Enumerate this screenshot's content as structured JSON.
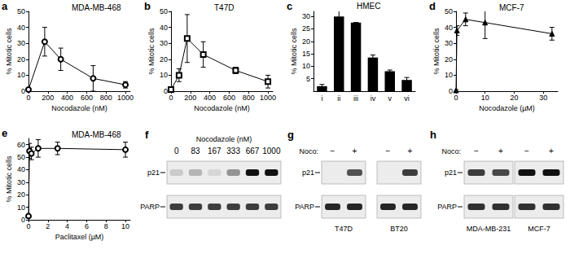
{
  "chart_data": [
    {
      "panel": "a",
      "type": "line",
      "title": "MDA-MB-468",
      "x_label": "Nocodazole (nM)",
      "y_label": "% Mitotic cells",
      "marker": "open_circle",
      "color": "#000000",
      "x": [
        0,
        167,
        333,
        667,
        1000
      ],
      "values": [
        1,
        31,
        20,
        8,
        4
      ],
      "errors": [
        0.5,
        9,
        7,
        8,
        2
      ],
      "xlim": [
        0,
        1050
      ],
      "xticks": [
        0,
        200,
        400,
        600,
        800,
        1000
      ],
      "ylim": [
        0,
        50
      ],
      "yticks": [
        0,
        10,
        20,
        30,
        40,
        50
      ],
      "grid": false
    },
    {
      "panel": "b",
      "type": "line",
      "title": "T47D",
      "x_label": "Nocodazole (nM)",
      "y_label": "% Mitotic cells",
      "marker": "open_square",
      "color": "#000000",
      "x": [
        0,
        83,
        167,
        333,
        667,
        1000
      ],
      "values": [
        1,
        10,
        33,
        23,
        13,
        6
      ],
      "errors": [
        1,
        4,
        15,
        8,
        2,
        4
      ],
      "xlim": [
        0,
        1050
      ],
      "xticks": [
        0,
        200,
        400,
        600,
        800,
        1000
      ],
      "ylim": [
        0,
        50
      ],
      "yticks": [
        0,
        10,
        20,
        30,
        40,
        50
      ],
      "grid": false
    },
    {
      "panel": "c",
      "type": "bar",
      "title": "HMEC",
      "y_label": "% Mitotic cells",
      "color": "#000000",
      "categories": [
        "i",
        "ii",
        "iii",
        "iv",
        "v",
        "vi"
      ],
      "values": [
        2,
        30,
        27.5,
        13.5,
        8,
        4.5
      ],
      "errors": [
        0.7,
        2.5,
        0,
        1,
        0.5,
        1
      ],
      "ylim": [
        0,
        32
      ],
      "yticks": [
        5,
        10,
        15,
        20,
        25,
        30
      ],
      "grid": false
    },
    {
      "panel": "d",
      "type": "line",
      "title": "MCF-7",
      "x_label": "Nocodazole (µM)",
      "y_label": "% Mitotic cells",
      "marker": "filled_triangle",
      "color": "#000000",
      "x": [
        0,
        0.33,
        3.3,
        10,
        33
      ],
      "values": [
        0.5,
        38,
        45,
        43,
        36
      ],
      "errors": [
        0.5,
        3,
        4,
        10,
        4
      ],
      "xlim": [
        0,
        35
      ],
      "xticks": [
        0,
        10,
        20,
        30
      ],
      "ylim": [
        0,
        50
      ],
      "yticks": [
        0,
        10,
        20,
        30,
        40,
        50
      ],
      "grid": false
    },
    {
      "panel": "e",
      "type": "line",
      "title": "MDA-MB-468",
      "x_label": "Paclitaxel (µM)",
      "y_label": "% Mitotic cells",
      "marker": "open_circle",
      "color": "#000000",
      "x": [
        0,
        0.1,
        0.3,
        1,
        3,
        10
      ],
      "values": [
        3,
        55,
        53,
        57,
        57,
        56
      ],
      "errors": [
        1,
        6,
        5,
        7,
        5,
        6
      ],
      "xlim": [
        0,
        10.5
      ],
      "xticks": [
        0,
        2,
        4,
        6,
        8,
        10
      ],
      "ylim": [
        0,
        65
      ],
      "yticks": [
        0,
        10,
        20,
        30,
        40,
        50,
        60
      ],
      "grid": false
    }
  ],
  "blots": [
    {
      "panel": "f",
      "header": "Nocodazole (nM)",
      "row_labels": [
        "p21",
        "PARP"
      ],
      "lanes": [
        "0",
        "83",
        "167",
        "333",
        "667",
        "1000"
      ],
      "intensity": [
        [
          0.15,
          0.25,
          0.1,
          0.4,
          1,
          1
        ],
        [
          0.8,
          0.8,
          0.8,
          0.8,
          0.8,
          0.8
        ]
      ]
    },
    {
      "panel": "g",
      "treatment": "Noco:",
      "row_labels": [
        "p21",
        "PARP"
      ],
      "groups": [
        {
          "name": "T47D",
          "lanes": [
            "−",
            "+"
          ],
          "intensity": [
            [
              0,
              0.7
            ],
            [
              0.9,
              0.9
            ]
          ]
        },
        {
          "name": "BT20",
          "lanes": [
            "−",
            "+"
          ],
          "intensity": [
            [
              0,
              0.8
            ],
            [
              0.9,
              0.9
            ]
          ]
        }
      ]
    },
    {
      "panel": "h",
      "treatment": "Noco:",
      "row_labels": [
        "p21",
        "PARP"
      ],
      "groups": [
        {
          "name": "MDA-MB-231",
          "lanes": [
            "−",
            "+"
          ],
          "intensity": [
            [
              0.8,
              0.75
            ],
            [
              0.85,
              0.85
            ]
          ]
        },
        {
          "name": "MCF-7",
          "lanes": [
            "−",
            "+"
          ],
          "intensity": [
            [
              1,
              1
            ],
            [
              0.85,
              0.85
            ]
          ]
        }
      ]
    }
  ]
}
